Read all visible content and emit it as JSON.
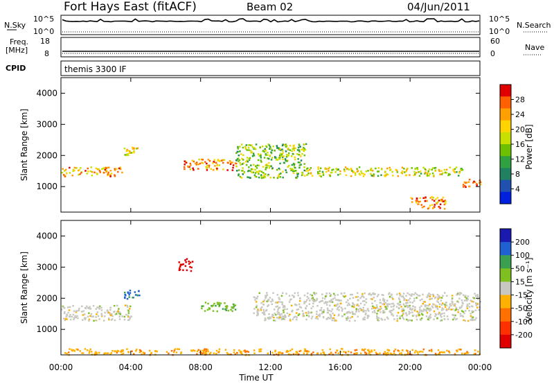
{
  "header": {
    "title": "Fort Hays East (fitACF)",
    "beam": "Beam 02",
    "date": "04/Jun/2011"
  },
  "noise_panel": {
    "left_label": "N.Sky",
    "left_ticks": [
      "10^5",
      "10^0"
    ],
    "right_ticks": [
      "10^5",
      "10^0"
    ],
    "right_label": "N.Search"
  },
  "freq_panel": {
    "left_label_1": "Freq.",
    "left_label_2": "[MHz]",
    "left_ticks": [
      "18",
      "8"
    ],
    "right_ticks": [
      "60",
      "0"
    ],
    "right_label": "Nave"
  },
  "cpid_panel": {
    "label": "CPID",
    "text": "themis 3300 IF"
  },
  "axes": {
    "y_label": "Slant Range [km]",
    "y_ticks": [
      "4000",
      "3000",
      "2000",
      "1000"
    ],
    "x_label": "Time UT",
    "x_ticks": [
      "00:00",
      "04:00",
      "08:00",
      "12:00",
      "16:00",
      "20:00",
      "00:00"
    ]
  },
  "power_colorbar": {
    "label": "Power [dB]",
    "ticks": [
      "28",
      "24",
      "20",
      "16",
      "12",
      "8",
      "4"
    ],
    "colors": [
      "#e00000",
      "#ff6000",
      "#ffa000",
      "#ffd400",
      "#c8e000",
      "#6cc000",
      "#30a040",
      "#208060",
      "#2050b0",
      "#0020e0"
    ]
  },
  "velocity_colorbar": {
    "label": "Velocity [m s⁻¹]",
    "ticks": [
      "200",
      "100",
      "50",
      "15",
      "-15",
      "-50",
      "-100",
      "-200"
    ],
    "colors": [
      "#1a1ab0",
      "#2060d0",
      "#3aa050",
      "#7ec020",
      "#c8c8c0",
      "#ffb000",
      "#ff7000",
      "#ff3000",
      "#e00000"
    ]
  },
  "chart_data": [
    {
      "type": "heatmap",
      "title": "Power [dB]",
      "xlabel": "Time UT",
      "ylabel": "Slant Range [km]",
      "xlim": [
        "00:00",
        "24:00"
      ],
      "ylim": [
        180,
        4500
      ],
      "clim": [
        0,
        30
      ],
      "features": [
        {
          "time_h": [
            0,
            3.5
          ],
          "range_km": [
            1350,
            1650
          ],
          "power_db": 22
        },
        {
          "time_h": [
            3.5,
            4.5
          ],
          "range_km": [
            2000,
            2300
          ],
          "power_db": 20
        },
        {
          "time_h": [
            7,
            10
          ],
          "range_km": [
            1550,
            1900
          ],
          "power_db": 24
        },
        {
          "time_h": [
            10,
            14
          ],
          "range_km": [
            1300,
            2400
          ],
          "power_db": 14
        },
        {
          "time_h": [
            14,
            23
          ],
          "range_km": [
            1350,
            1650
          ],
          "power_db": 18
        },
        {
          "time_h": [
            20,
            22
          ],
          "range_km": [
            300,
            700
          ],
          "power_db": 24
        },
        {
          "time_h": [
            23,
            24
          ],
          "range_km": [
            1000,
            1300
          ],
          "power_db": 26
        }
      ]
    },
    {
      "type": "heatmap",
      "title": "Velocity",
      "xlabel": "Time UT",
      "ylabel": "Slant Range [km]",
      "xlim": [
        "00:00",
        "24:00"
      ],
      "ylim": [
        180,
        4500
      ],
      "clim": [
        -200,
        200
      ],
      "features": [
        {
          "time_h": [
            0,
            4
          ],
          "range_km": [
            1300,
            1800
          ],
          "velocity_ms": 0
        },
        {
          "time_h": [
            3.5,
            4.5
          ],
          "range_km": [
            2000,
            2300
          ],
          "velocity_ms": 150
        },
        {
          "time_h": [
            6.7,
            7.5
          ],
          "range_km": [
            2900,
            3300
          ],
          "velocity_ms": -200
        },
        {
          "time_h": [
            8,
            10
          ],
          "range_km": [
            1600,
            1900
          ],
          "velocity_ms": 60
        },
        {
          "time_h": [
            11,
            24
          ],
          "range_km": [
            1300,
            2200
          ],
          "velocity_ms": 0
        },
        {
          "time_h": [
            0,
            24
          ],
          "range_km": [
            200,
            400
          ],
          "velocity_ms": -60
        }
      ]
    }
  ]
}
